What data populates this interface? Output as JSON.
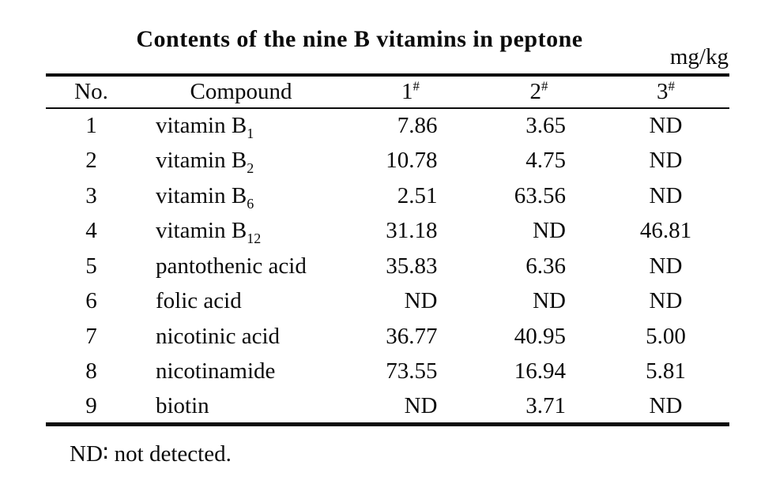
{
  "title": "Contents of the nine B vitamins in peptone",
  "unit": "mg/kg",
  "table": {
    "headers": [
      {
        "label": "No."
      },
      {
        "label": "Compound"
      },
      {
        "label": "1",
        "sup": "#"
      },
      {
        "label": "2",
        "sup": "#"
      },
      {
        "label": "3",
        "sup": "#"
      }
    ],
    "rows": [
      {
        "no": "1",
        "compound": "vitamin B",
        "compound_sub": "1",
        "s1": "7.86",
        "s2": "3.65",
        "s3": "ND"
      },
      {
        "no": "2",
        "compound": "vitamin B",
        "compound_sub": "2",
        "s1": "10.78",
        "s2": "4.75",
        "s3": "ND"
      },
      {
        "no": "3",
        "compound": "vitamin B",
        "compound_sub": "6",
        "s1": "2.51",
        "s2": "63.56",
        "s3": "ND"
      },
      {
        "no": "4",
        "compound": "vitamin B",
        "compound_sub": "12",
        "s1": "31.18",
        "s2": "ND",
        "s3": "46.81"
      },
      {
        "no": "5",
        "compound": "pantothenic acid",
        "s1": "35.83",
        "s2": "6.36",
        "s3": "ND"
      },
      {
        "no": "6",
        "compound": "folic acid",
        "s1": "ND",
        "s2": "ND",
        "s3": "ND"
      },
      {
        "no": "7",
        "compound": "nicotinic acid",
        "s1": "36.77",
        "s2": "40.95",
        "s3": "5.00"
      },
      {
        "no": "8",
        "compound": "nicotinamide",
        "s1": "73.55",
        "s2": "16.94",
        "s3": "5.81"
      },
      {
        "no": "9",
        "compound": "biotin",
        "s1": "ND",
        "s2": "3.71",
        "s3": "ND"
      }
    ]
  },
  "footnote": "ND∶ not detected.",
  "colors": {
    "text": "#0b0b0b",
    "background": "#ffffff",
    "rule": "#0b0b0b"
  }
}
